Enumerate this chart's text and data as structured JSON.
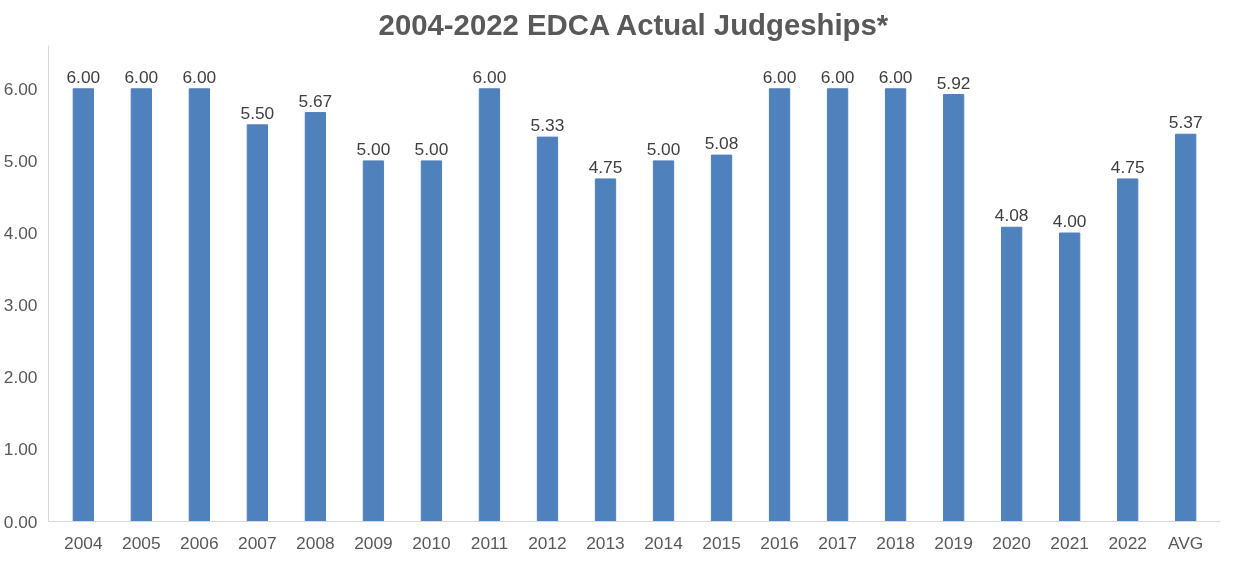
{
  "chart_data": {
    "type": "bar",
    "title": "2004-2022 EDCA Actual Judgeships*",
    "categories": [
      "2004",
      "2005",
      "2006",
      "2007",
      "2008",
      "2009",
      "2010",
      "2011",
      "2012",
      "2013",
      "2014",
      "2015",
      "2016",
      "2017",
      "2018",
      "2019",
      "2020",
      "2021",
      "2022",
      "AVG"
    ],
    "values": [
      6,
      6,
      6,
      5.5,
      5.67,
      5,
      5,
      6,
      5.33,
      4.75,
      5,
      5.08,
      6,
      6,
      6,
      5.92,
      4.08,
      4,
      4.75,
      5.37
    ],
    "value_labels": [
      "6.00",
      "6.00",
      "6.00",
      "5.50",
      "5.67",
      "5.00",
      "5.00",
      "6.00",
      "5.33",
      "4.75",
      "5.00",
      "5.08",
      "6.00",
      "6.00",
      "6.00",
      "5.92",
      "4.08",
      "4.00",
      "4.75",
      "5.37"
    ],
    "color": "#4f81bd",
    "ylim": [
      0,
      6.6
    ],
    "yticks": [
      {
        "value": 0,
        "label": "0.00"
      },
      {
        "value": 1,
        "label": "1.00"
      },
      {
        "value": 2,
        "label": "2.00"
      },
      {
        "value": 3,
        "label": "3.00"
      },
      {
        "value": 4,
        "label": "4.00"
      },
      {
        "value": 5,
        "label": "5.00"
      },
      {
        "value": 6,
        "label": "6.00"
      }
    ],
    "grid": false
  }
}
